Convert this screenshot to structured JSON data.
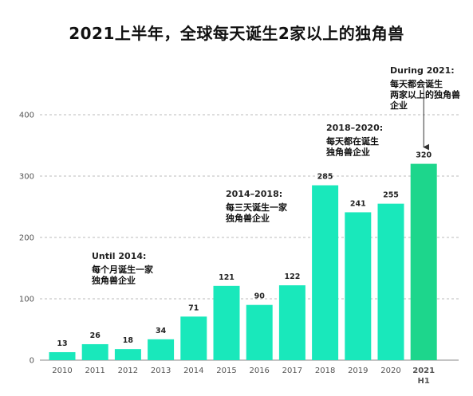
{
  "title": "2021上半年，全球每天诞生2家以上的独角兽",
  "chart_data": {
    "type": "bar",
    "title": "2021上半年，全球每天诞生2家以上的独角兽",
    "xlabel": "",
    "ylabel": "",
    "ylim": [
      0,
      400
    ],
    "yticks": [
      "0",
      "100",
      "200",
      "300",
      "400"
    ],
    "grid": true,
    "categories": [
      "2010",
      "2011",
      "2012",
      "2013",
      "2014",
      "2015",
      "2016",
      "2017",
      "2018",
      "2019",
      "2020",
      "2021"
    ],
    "highlight_sublabel": "H1",
    "values": [
      13,
      26,
      18,
      34,
      71,
      121,
      90,
      122,
      285,
      241,
      255,
      320
    ],
    "colors": {
      "bar": "#19e8bb",
      "highlight": "#1dd68c",
      "grid": "#bbbbbb"
    },
    "annotations": [
      {
        "head": "Until 2014:",
        "lines": [
          "每个月诞生一家",
          "独角兽企业"
        ]
      },
      {
        "head": "2014–2018:",
        "lines": [
          "每三天诞生一家",
          "独角兽企业"
        ]
      },
      {
        "head": "2018–2020:",
        "lines": [
          "每天都在诞生",
          "独角兽企业"
        ]
      },
      {
        "head": "During 2021:",
        "lines": [
          "每天都会诞生",
          "两家以上的独角兽",
          "企业"
        ]
      }
    ]
  }
}
